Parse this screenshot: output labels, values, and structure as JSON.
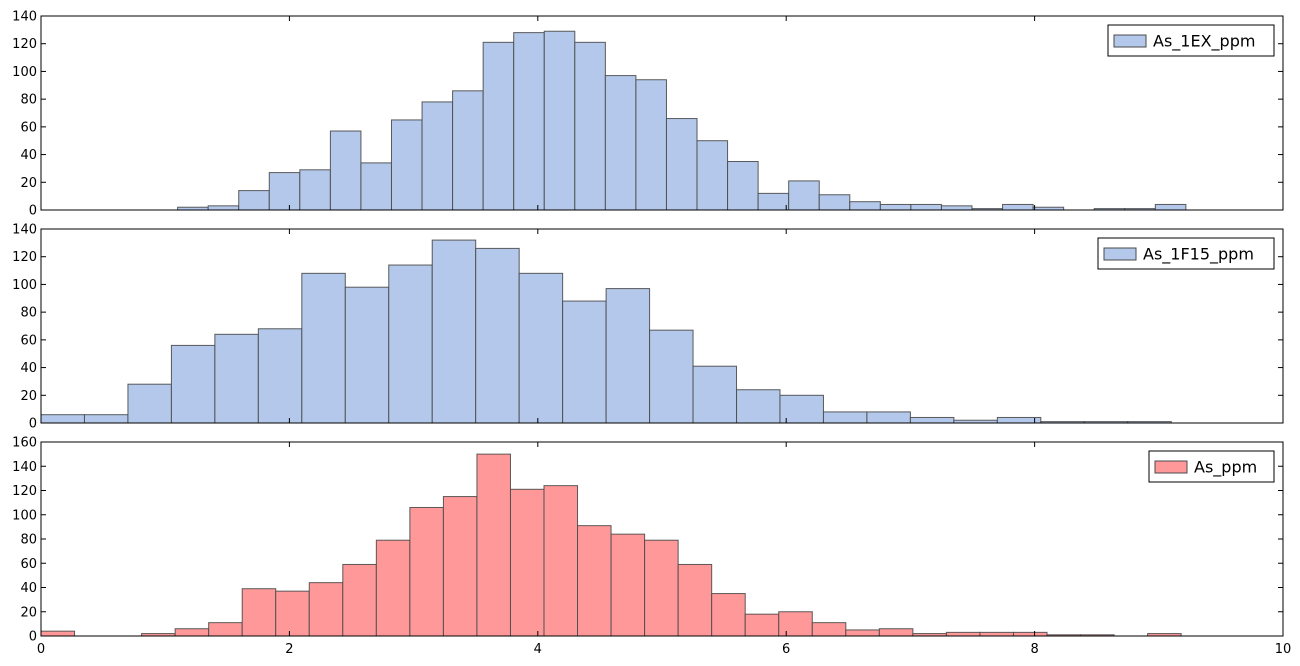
{
  "colors": {
    "blue_fill": "#b3c8ea",
    "red_fill": "#ff9999",
    "edge": "#4a4a4a",
    "axis": "#000000"
  },
  "chart_data": [
    {
      "type": "bar",
      "panel": "top",
      "legend": "As_1EX_ppm",
      "legend_position": "top-right",
      "color": "#b3c8ea",
      "xlim": [
        0,
        10
      ],
      "ylim": [
        0,
        140
      ],
      "xticks": [
        0,
        2,
        4,
        6,
        8,
        10
      ],
      "yticks": [
        0,
        20,
        40,
        60,
        80,
        100,
        120,
        140
      ],
      "show_xtick_labels": false,
      "bin_start": 1.1,
      "bin_width": 0.246,
      "values": [
        2,
        3,
        14,
        27,
        29,
        57,
        34,
        65,
        78,
        86,
        121,
        128,
        129,
        121,
        97,
        94,
        66,
        50,
        35,
        12,
        21,
        11,
        6,
        4,
        4,
        3,
        1,
        4,
        2,
        0,
        1,
        1,
        4
      ]
    },
    {
      "type": "bar",
      "panel": "middle",
      "legend": "As_1F15_ppm",
      "legend_position": "top-right",
      "color": "#b3c8ea",
      "xlim": [
        0,
        10
      ],
      "ylim": [
        0,
        140
      ],
      "xticks": [
        0,
        2,
        4,
        6,
        8,
        10
      ],
      "yticks": [
        0,
        20,
        40,
        60,
        80,
        100,
        120,
        140
      ],
      "show_xtick_labels": false,
      "bin_start": 0.0,
      "bin_width": 0.35,
      "values": [
        6,
        6,
        28,
        56,
        64,
        68,
        108,
        98,
        114,
        132,
        126,
        108,
        88,
        97,
        67,
        41,
        24,
        20,
        8,
        8,
        4,
        2,
        4,
        1,
        1,
        1
      ]
    },
    {
      "type": "bar",
      "panel": "bottom",
      "legend": "As_ppm",
      "legend_position": "top-right",
      "color": "#ff9999",
      "xlim": [
        0,
        10
      ],
      "ylim": [
        0,
        160
      ],
      "xticks": [
        0,
        2,
        4,
        6,
        8,
        10
      ],
      "yticks": [
        0,
        20,
        40,
        60,
        80,
        100,
        120,
        140,
        160
      ],
      "show_xtick_labels": true,
      "xtick_labels": [
        "0",
        "2",
        "4",
        "6",
        "8",
        "10"
      ],
      "bin_start": 0.0,
      "bin_width": 0.27,
      "values": [
        4,
        0,
        0,
        2,
        6,
        11,
        39,
        37,
        44,
        59,
        79,
        106,
        115,
        150,
        121,
        124,
        91,
        84,
        79,
        59,
        35,
        18,
        20,
        11,
        5,
        6,
        2,
        3,
        3,
        3,
        1,
        1,
        0,
        2
      ]
    }
  ]
}
